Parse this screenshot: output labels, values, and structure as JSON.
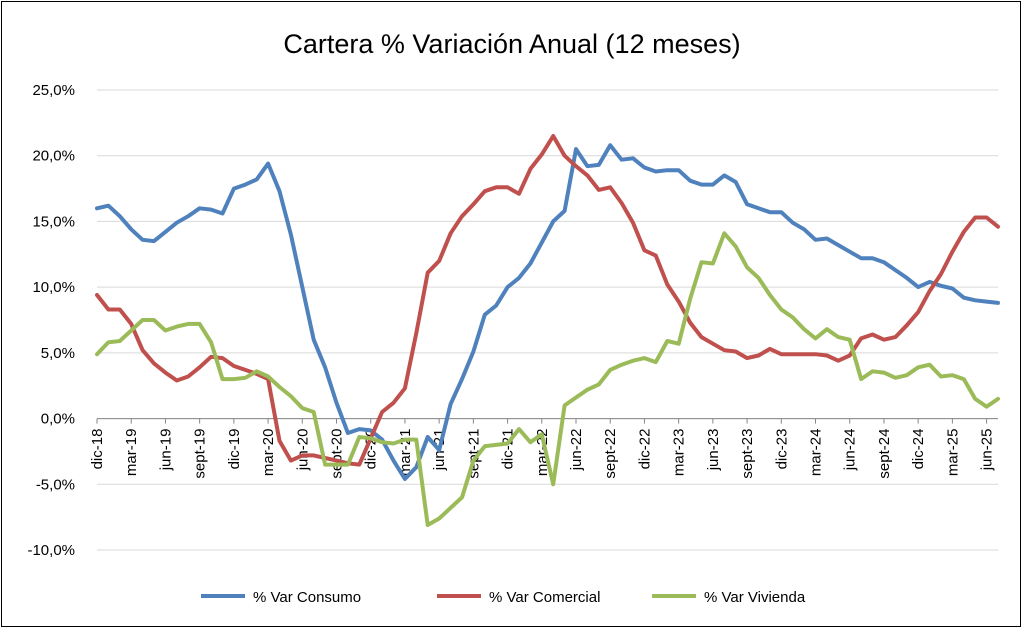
{
  "chart_data": {
    "type": "line",
    "title": "Cartera % Variación Anual (12 meses)",
    "xlabel": "",
    "ylabel": "",
    "ylim": [
      -10,
      25
    ],
    "y_ticks": [
      -10,
      -5,
      0,
      5,
      10,
      15,
      20,
      25
    ],
    "y_tick_labels": [
      "-10,0%",
      "-5,0%",
      "0,0%",
      "5,0%",
      "10,0%",
      "15,0%",
      "20,0%",
      "25,0%"
    ],
    "x_start": "dic-18",
    "x_tick_labels": [
      "dic-18",
      "mar-19",
      "jun-19",
      "sept-19",
      "dic-19",
      "mar-20",
      "jun-20",
      "sept-20",
      "dic-20",
      "mar-21",
      "jun-21",
      "sept-21",
      "dic-21",
      "mar-22",
      "jun-22",
      "sept-22",
      "dic-22",
      "mar-23",
      "jun-23",
      "sept-23",
      "dic-23",
      "mar-24",
      "jun-24",
      "sept-24",
      "dic-24",
      "mar-25",
      "jun-25"
    ],
    "grid": true,
    "legend": "bottom",
    "series": [
      {
        "name": "% Var Consumo",
        "color": "#4f81bd",
        "values": [
          16.0,
          16.2,
          15.4,
          14.4,
          13.6,
          13.5,
          14.2,
          14.9,
          15.4,
          16.0,
          15.9,
          15.6,
          17.5,
          17.8,
          18.2,
          19.4,
          17.3,
          14.0,
          10.0,
          6.0,
          3.9,
          1.2,
          -1.1,
          -0.8,
          -0.9,
          -1.6,
          -3.2,
          -4.6,
          -3.7,
          -1.4,
          -2.4,
          1.1,
          3.0,
          5.1,
          7.9,
          8.6,
          10.0,
          10.7,
          11.8,
          13.4,
          15.0,
          15.8,
          20.5,
          19.2,
          19.3,
          20.8,
          19.7,
          19.8,
          19.1,
          18.8,
          18.9,
          18.9,
          18.1,
          17.8,
          17.8,
          18.5,
          18.0,
          16.3,
          16.0,
          15.7,
          15.7,
          14.9,
          14.4,
          13.6,
          13.7,
          13.2,
          12.7,
          12.2,
          12.2,
          11.9,
          11.3,
          10.7,
          10.0,
          10.4,
          10.1,
          9.9,
          9.2,
          9.0,
          8.9,
          8.8
        ]
      },
      {
        "name": "% Var Comercial",
        "color": "#c0504d",
        "values": [
          9.4,
          8.3,
          8.3,
          7.2,
          5.2,
          4.2,
          3.5,
          2.9,
          3.2,
          3.9,
          4.7,
          4.6,
          4.0,
          3.7,
          3.4,
          3.0,
          -1.7,
          -3.2,
          -2.8,
          -2.8,
          -3.0,
          -3.2,
          -3.4,
          -3.5,
          -1.5,
          0.5,
          1.2,
          2.3,
          6.5,
          11.1,
          12.0,
          14.1,
          15.4,
          16.3,
          17.3,
          17.6,
          17.6,
          17.1,
          19.0,
          20.1,
          21.5,
          20.0,
          19.2,
          18.5,
          17.4,
          17.6,
          16.4,
          14.9,
          12.8,
          12.4,
          10.2,
          8.9,
          7.3,
          6.2,
          5.7,
          5.2,
          5.1,
          4.6,
          4.8,
          5.3,
          4.9,
          4.9,
          4.9,
          4.9,
          4.8,
          4.4,
          4.8,
          6.1,
          6.4,
          6.0,
          6.2,
          7.1,
          8.1,
          9.7,
          11.0,
          12.7,
          14.2,
          15.3,
          15.3,
          14.6
        ]
      },
      {
        "name": "% Var Vivienda",
        "color": "#9bbb59",
        "values": [
          4.9,
          5.8,
          5.9,
          6.7,
          7.5,
          7.5,
          6.7,
          7.0,
          7.2,
          7.2,
          5.8,
          3.0,
          3.0,
          3.1,
          3.6,
          3.2,
          2.4,
          1.7,
          0.8,
          0.5,
          -3.5,
          -3.5,
          -3.5,
          -1.4,
          -1.5,
          -1.8,
          -1.9,
          -1.6,
          -1.6,
          -8.1,
          -7.6,
          -6.8,
          -6.0,
          -3.2,
          -2.1,
          -2.0,
          -1.9,
          -0.8,
          -1.8,
          -1.2,
          -5.0,
          1.0,
          1.6,
          2.2,
          2.6,
          3.7,
          4.1,
          4.4,
          4.6,
          4.3,
          5.9,
          5.7,
          9.1,
          11.9,
          11.8,
          14.1,
          13.1,
          11.5,
          10.7,
          9.4,
          8.3,
          7.7,
          6.8,
          6.1,
          6.8,
          6.2,
          6.0,
          3.0,
          3.6,
          3.5,
          3.1,
          3.3,
          3.9,
          4.1,
          3.2,
          3.3,
          3.0,
          1.5,
          0.9,
          1.5
        ]
      }
    ]
  }
}
